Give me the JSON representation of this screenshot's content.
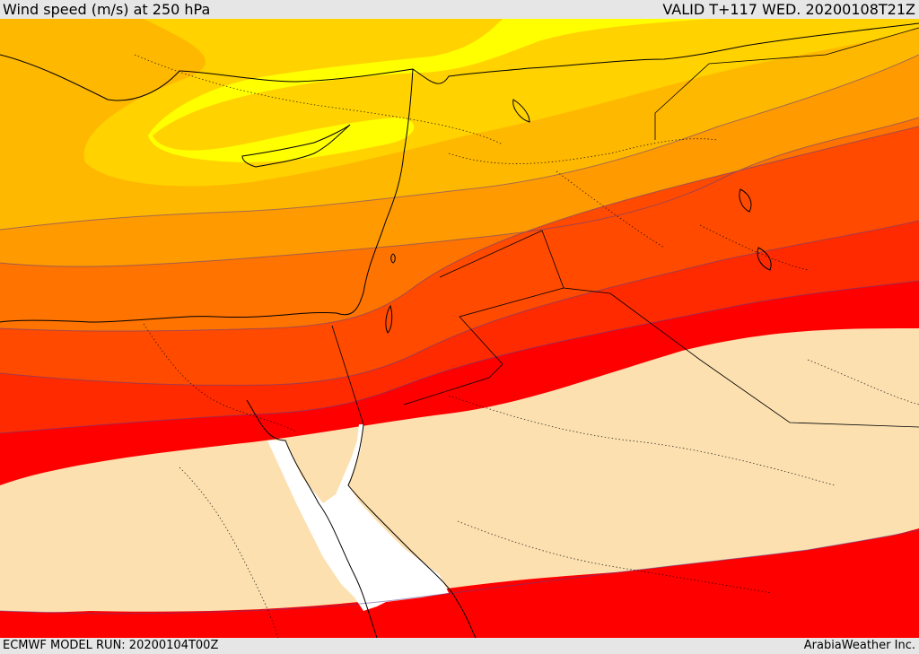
{
  "header": {
    "title": "Wind speed (m/s) at 250 hPa",
    "valid": "VALID T+117 WED. 20200108T21Z"
  },
  "footer": {
    "model_run": "ECMWF MODEL RUN: 20200104T00Z",
    "credit": "ArabiaWeather Inc."
  },
  "map": {
    "field": "wind-speed-250hPa",
    "colors": {
      "jet_core": "#ff0000",
      "band_red_orange": "#ff2a00",
      "band_orange_red": "#ff4a00",
      "band_dark_orange": "#ff7300",
      "band_orange": "#ff9a00",
      "band_amber": "#ffb800",
      "band_yellow_orange": "#ffd200",
      "band_yellow": "#ffff00",
      "calm": "#fce0b0",
      "sea": "#ffffff",
      "coastline": "#000000",
      "contour": "#5a3c8c"
    }
  }
}
